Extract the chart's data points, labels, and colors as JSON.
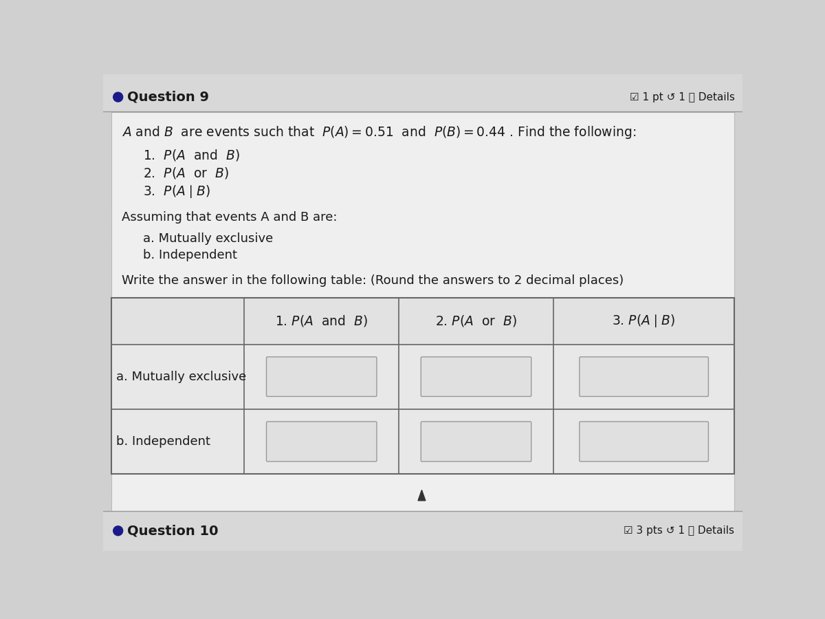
{
  "bg_color": "#d0d0d0",
  "panel_color": "#f0f0f0",
  "question9_label": "Question 9",
  "q9_pts": "☑ 1 pt ↺ 1 ⓘ Details",
  "question10_label": "Question 10",
  "q10_pts": "☑ 3 pts ↺ 1 ⓘ Details",
  "dot_color": "#1a1a8a",
  "text_color": "#1a1a1a",
  "table_border_color": "#666666",
  "input_box_color": "#e8e8e8",
  "input_box_border": "#999999",
  "header_row_bg": "#e0e0e0",
  "separator_color": "#999999",
  "row_labels": [
    "a. Mutually exclusive",
    "b. Independent"
  ]
}
